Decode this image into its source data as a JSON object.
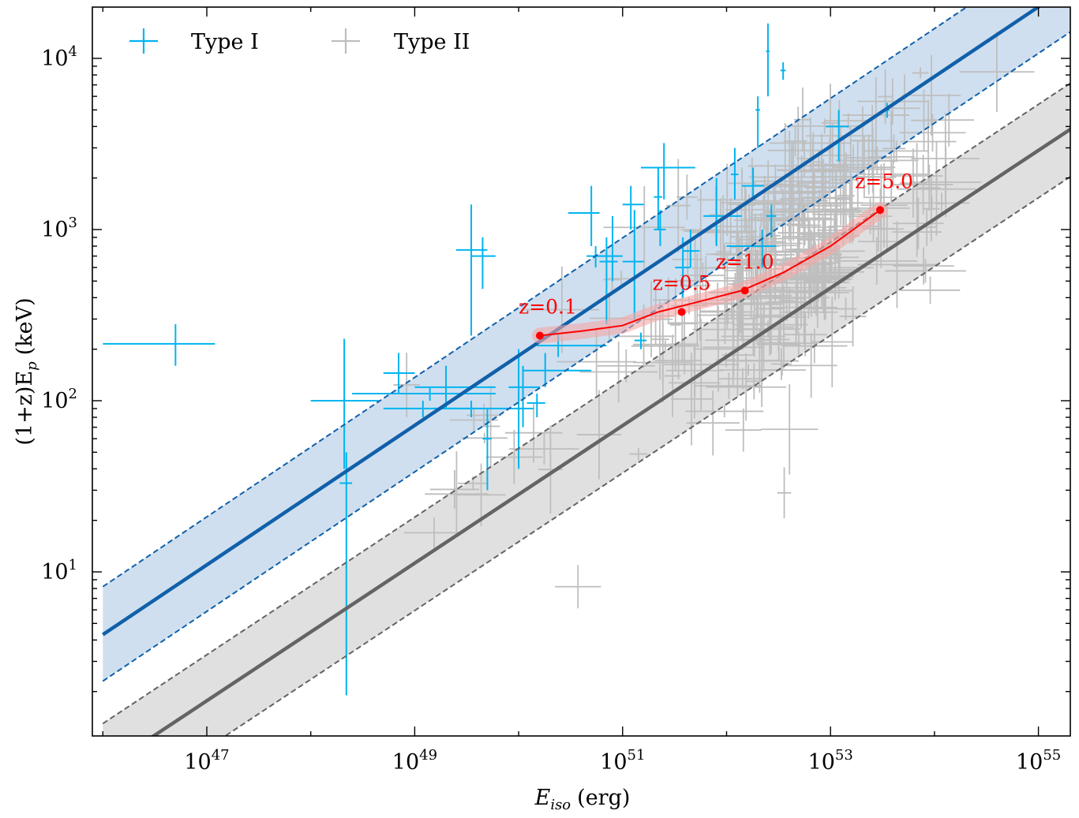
{
  "chart_data": {
    "type": "scatter",
    "x_scale": "log",
    "y_scale": "log",
    "xlabel_main": "E",
    "xlabel_sub": "iso",
    "xlabel_unit": "(erg)",
    "ylabel_main": "(1+z)E",
    "ylabel_sub": "p",
    "ylabel_unit": "(keV)",
    "xlim": [
      1e+46,
      1e+55
    ],
    "ylim": [
      1.2,
      20000
    ],
    "x_ticks": [
      {
        "value": 1e+47,
        "base": "10",
        "exp": "47"
      },
      {
        "value": 1e+49,
        "base": "10",
        "exp": "49"
      },
      {
        "value": 1e+51,
        "base": "10",
        "exp": "51"
      },
      {
        "value": 1e+53,
        "base": "10",
        "exp": "53"
      },
      {
        "value": 1e+55,
        "base": "10",
        "exp": "55"
      }
    ],
    "y_ticks": [
      {
        "value": 10,
        "base": "10",
        "exp": "1"
      },
      {
        "value": 100,
        "base": "10",
        "exp": "2"
      },
      {
        "value": 1000,
        "base": "10",
        "exp": "3"
      },
      {
        "value": 10000,
        "base": "10",
        "exp": "4"
      }
    ],
    "colors": {
      "type1": "#00b4f0",
      "type1_fit": "#1060aa",
      "type1_band": "#cfdfef",
      "type2": "#bebebe",
      "type2_fit": "#646464",
      "type2_band": "#e0e0e0",
      "track": "#ff0000",
      "track_band": "#f4a6a6"
    },
    "legend": {
      "placement": "upper-left",
      "entries": [
        {
          "label": "Type I",
          "color": "#00b4f0"
        },
        {
          "label": "Type II",
          "color": "#bebebe"
        }
      ]
    },
    "fits": [
      {
        "name": "Type I",
        "points": [
          [
            1e+46,
            4.3
          ],
          [
            1e+55,
            20000
          ]
        ],
        "upper": [
          [
            1e+46,
            8.2
          ],
          [
            1e+55,
            20000
          ]
        ],
        "lower": [
          [
            1e+46,
            2.3
          ],
          [
            1e+55,
            20000
          ]
        ]
      },
      {
        "name": "Type II",
        "points": [
          [
            1e+46,
            0.7
          ],
          [
            1e+55,
            2900
          ]
        ],
        "upper": [
          [
            1e+46,
            1.3
          ],
          [
            1e+55,
            5500
          ]
        ],
        "lower": [
          [
            1e+46,
            0.37
          ],
          [
            1e+55,
            1500
          ]
        ]
      }
    ],
    "redshift_track": {
      "x": [
        1.6e+50,
        4e+50,
        1e+51,
        2.2e+51,
        5.5e+51,
        1.4e+52,
        3.5e+52,
        1e+53,
        3e+53
      ],
      "y": [
        240,
        255,
        275,
        330,
        380,
        440,
        560,
        800,
        1300
      ],
      "markers": [
        {
          "label": "z=0.1",
          "x": 1.6e+50,
          "y": 240
        },
        {
          "label": "z=0.5",
          "x": 3.7e+51,
          "y": 330
        },
        {
          "label": "z=1.0",
          "x": 1.5e+52,
          "y": 440
        },
        {
          "label": "z=5.0",
          "x": 3e+53,
          "y": 1300
        }
      ]
    },
    "type1_points": [
      [
        5e+46,
        215,
        1e+46,
        1.2e+47,
        160,
        280
      ],
      [
        2.2e+48,
        33,
        1.9e+48,
        2.5e+48,
        1.9,
        50
      ],
      [
        2.1e+48,
        100,
        1e+48,
        4.5e+48,
        40,
        230
      ],
      [
        7e+48,
        145,
        5e+48,
        1e+49,
        110,
        190
      ],
      [
        1.4e+49,
        110,
        2.5e+48,
        6e+49,
        100,
        120
      ],
      [
        1.2e+49,
        90,
        5e+48,
        4e+49,
        80,
        100
      ],
      [
        2e+49,
        120,
        1e+49,
        6e+49,
        90,
        160
      ],
      [
        3.5e+49,
        90,
        1.5e+49,
        9e+49,
        80,
        100
      ],
      [
        3.5e+49,
        760,
        2.5e+49,
        5e+49,
        240,
        1400
      ],
      [
        4.5e+49,
        700,
        3.5e+49,
        6e+49,
        450,
        900
      ],
      [
        5e+49,
        60,
        4.5e+49,
        5.5e+49,
        30,
        90
      ],
      [
        1e+50,
        120,
        8e+49,
        1.6e+50,
        40,
        200
      ],
      [
        1.1e+50,
        90,
        9e+49,
        1.4e+50,
        70,
        160
      ],
      [
        1.5e+50,
        97,
        1.2e+50,
        1.8e+50,
        80,
        110
      ],
      [
        1.8e+50,
        150,
        1.1e+50,
        5e+50,
        120,
        190
      ],
      [
        2.4e+50,
        210,
        1.5e+50,
        7e+50,
        180,
        250
      ],
      [
        5e+50,
        1250,
        3e+50,
        6e+50,
        800,
        1800
      ],
      [
        5.5e+50,
        700,
        4.5e+50,
        6.5e+50,
        600,
        800
      ],
      [
        7e+50,
        650,
        6e+50,
        9e+50,
        280,
        900
      ],
      [
        8e+50,
        700,
        6e+50,
        1e+51,
        500,
        1200
      ],
      [
        1.2e+51,
        1400,
        1e+51,
        1.6e+51,
        1000,
        1800
      ],
      [
        1.3e+51,
        650,
        1e+51,
        1.6e+51,
        300,
        1300
      ],
      [
        1.5e+51,
        225,
        1.3e+51,
        1.7e+51,
        200,
        250
      ],
      [
        2.2e+51,
        1550,
        2e+51,
        2.4e+51,
        1000,
        2300
      ],
      [
        2.3e+51,
        1000,
        2e+51,
        2.6e+51,
        800,
        1300
      ],
      [
        2.5e+51,
        2300,
        1.5e+51,
        5e+51,
        1500,
        3200
      ],
      [
        3.8e+51,
        600,
        3.2e+51,
        4.5e+51,
        400,
        900
      ],
      [
        4.5e+51,
        750,
        3.8e+51,
        5.5e+51,
        600,
        1000
      ],
      [
        8e+51,
        1200,
        6e+51,
        1.4e+52,
        800,
        2000
      ],
      [
        1.2e+52,
        2100,
        1.1e+52,
        1.3e+52,
        1500,
        3000
      ],
      [
        1.8e+52,
        1800,
        1.4e+52,
        2.3e+52,
        1500,
        2300
      ],
      [
        2e+52,
        5000,
        1.9e+52,
        2.1e+52,
        3000,
        6000
      ],
      [
        2.2e+52,
        800,
        1e+52,
        3e+52,
        600,
        1000
      ],
      [
        2.7e+52,
        1200,
        2.4e+52,
        3e+52,
        900,
        1400
      ],
      [
        3.5e+52,
        8500,
        3.3e+52,
        3.7e+52,
        7500,
        9500
      ],
      [
        1.2e+53,
        4000,
        9e+52,
        1.5e+53,
        2500,
        5000
      ],
      [
        3.5e+53,
        5000,
        3.3e+53,
        3.7e+53,
        4500,
        5500
      ],
      [
        2.5e+52,
        11000,
        2.4e+52,
        2.6e+52,
        6000,
        16000
      ]
    ]
  }
}
